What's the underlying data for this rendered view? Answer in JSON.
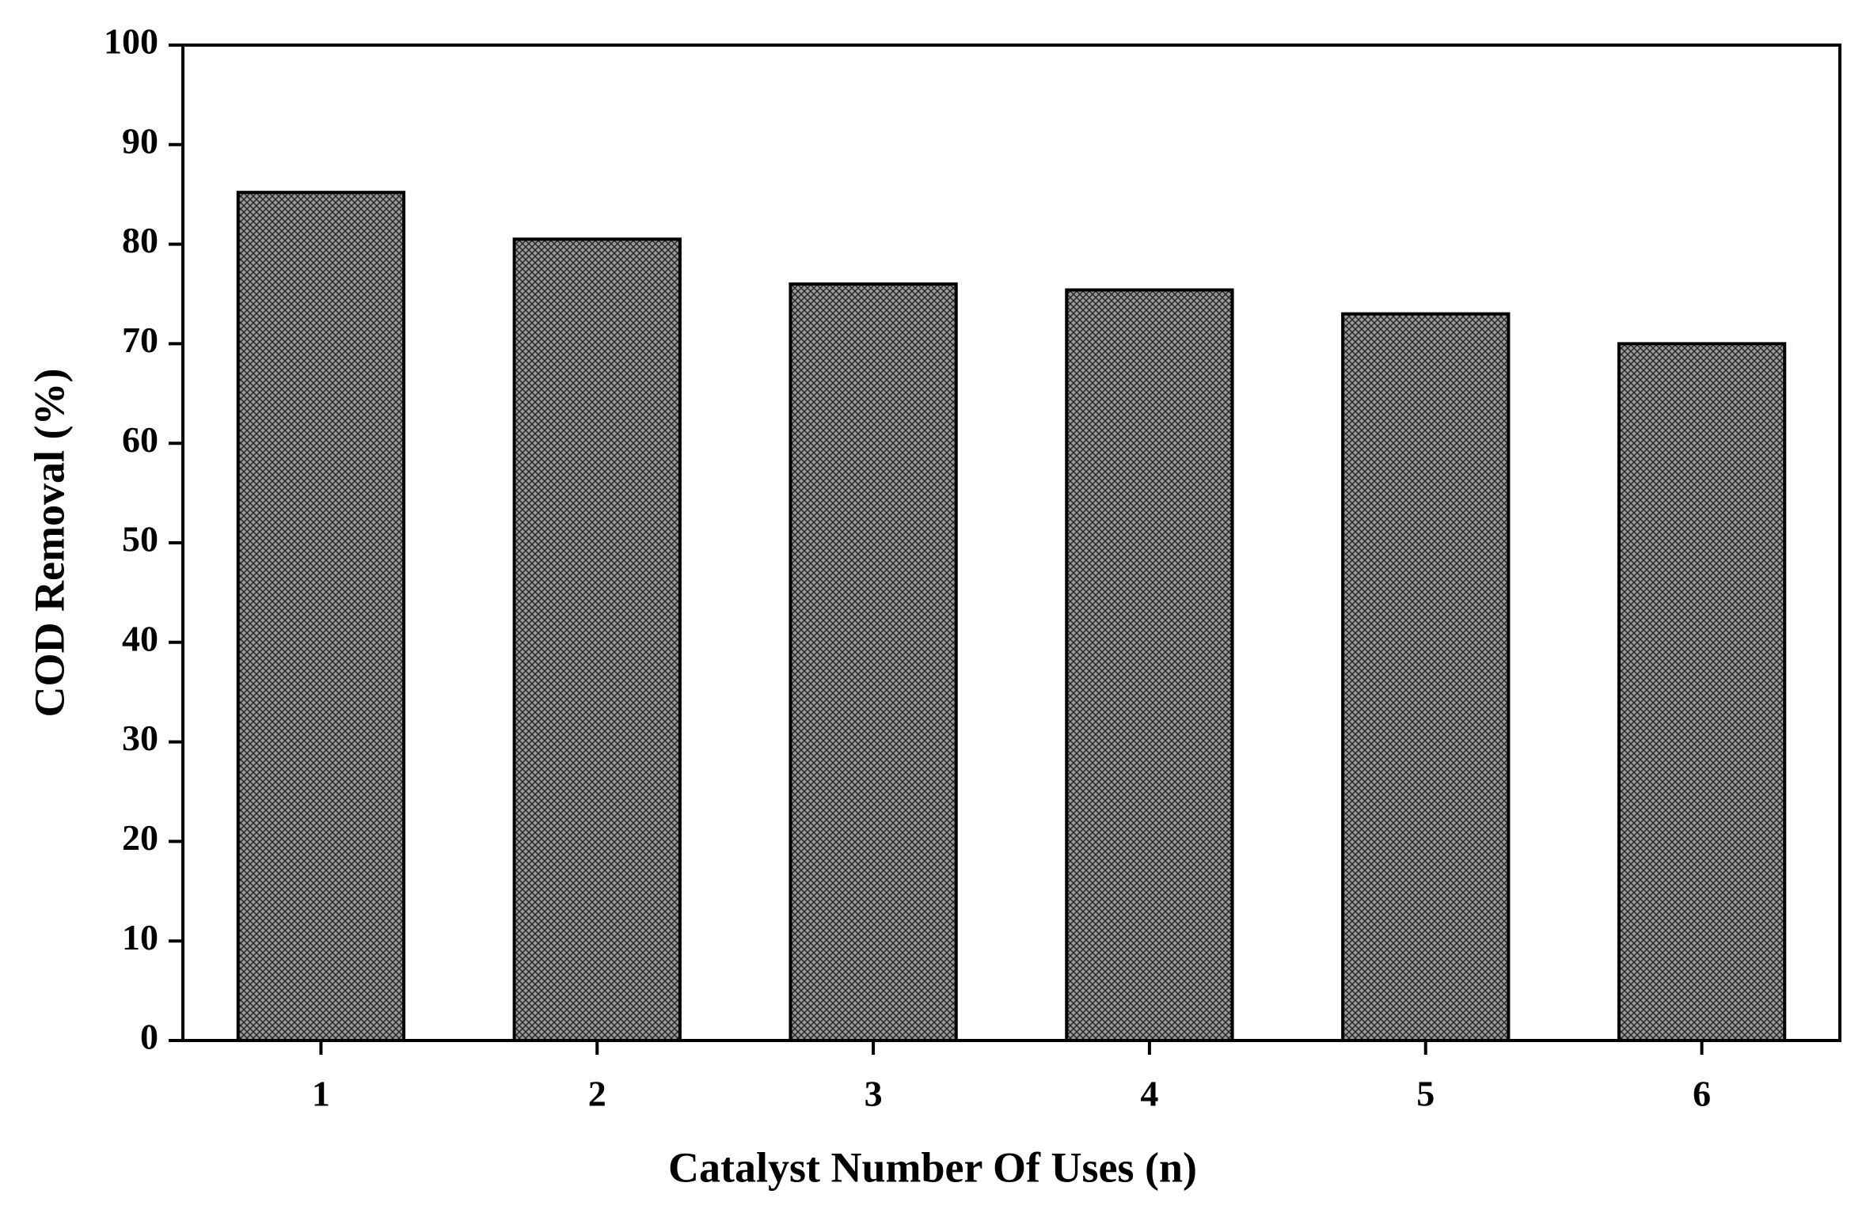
{
  "chart_data": {
    "type": "bar",
    "x_label": "Catalyst Number Of Uses (n)",
    "y_label": "COD Removal (%)",
    "categories": [
      "1",
      "2",
      "3",
      "4",
      "5",
      "6"
    ],
    "values": [
      85.2,
      80.5,
      76,
      75.4,
      73,
      70
    ],
    "color": "#9a9a9a",
    "ylim": [
      0,
      100
    ],
    "yticks": [
      0,
      10,
      20,
      30,
      40,
      50,
      60,
      70,
      80,
      90,
      100
    ],
    "grid": false
  }
}
